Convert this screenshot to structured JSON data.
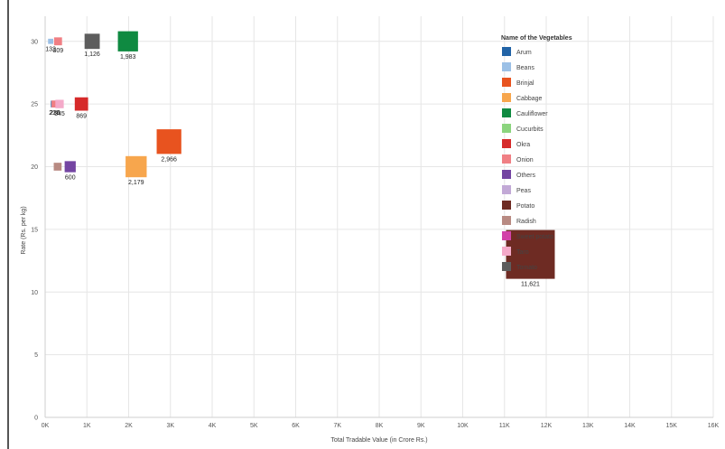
{
  "chart_data": {
    "type": "scatter",
    "xlabel": "Total Tradable Value (in Crore Rs.)",
    "ylabel": "Rate (Rs. per kg)",
    "xlim": [
      0,
      16
    ],
    "ylim": [
      0,
      32
    ],
    "x_unit": "K",
    "x_ticks": [
      "0K",
      "1K",
      "2K",
      "3K",
      "4K",
      "5K",
      "6K",
      "7K",
      "8K",
      "9K",
      "10K",
      "11K",
      "12K",
      "13K",
      "14K",
      "15K",
      "16K"
    ],
    "y_ticks": [
      "0",
      "5",
      "10",
      "15",
      "20",
      "25",
      "30"
    ],
    "grid": true,
    "legend_title": "Name of the Vegetables",
    "legend_position": "top-right",
    "legend": [
      {
        "name": "Arum",
        "color": "#2163a6"
      },
      {
        "name": "Beans",
        "color": "#9bc0e6"
      },
      {
        "name": "Brinjal",
        "color": "#e8531f"
      },
      {
        "name": "Cabbage",
        "color": "#f7a64d"
      },
      {
        "name": "Cauliflower",
        "color": "#0f8a41"
      },
      {
        "name": "Cucurbits",
        "color": "#8bd47e"
      },
      {
        "name": "Okra",
        "color": "#d62a2a"
      },
      {
        "name": "Onion",
        "color": "#f07f84"
      },
      {
        "name": "Others",
        "color": "#7445a2"
      },
      {
        "name": "Peas",
        "color": "#c2a9d6"
      },
      {
        "name": "Potato",
        "color": "#6e2b23"
      },
      {
        "name": "Radish",
        "color": "#b88a82"
      },
      {
        "name": "Sweet potato",
        "color": "#d243a8"
      },
      {
        "name": "Taro",
        "color": "#f4aac9"
      },
      {
        "name": "Tomato",
        "color": "#5d5d5d"
      }
    ],
    "points": [
      {
        "name": "Beans",
        "x": 0.132,
        "y": 30,
        "value": 132,
        "label": "132",
        "color": "#9bc0e6"
      },
      {
        "name": "Onion",
        "x": 0.309,
        "y": 30,
        "value": 309,
        "label": "309",
        "color": "#f07f84"
      },
      {
        "name": "Tomato",
        "x": 1.126,
        "y": 30,
        "value": 1126,
        "label": "1,126",
        "color": "#5d5d5d"
      },
      {
        "name": "Cauliflower",
        "x": 1.983,
        "y": 30,
        "value": 1983,
        "label": "1,983",
        "color": "#0f8a41"
      },
      {
        "name": "Arum",
        "x": 0.217,
        "y": 25,
        "value": 217,
        "label": "217",
        "color": "#2163a6"
      },
      {
        "name": "Onion",
        "x": 0.236,
        "y": 25,
        "value": 236,
        "label": "236",
        "color": "#f07f84"
      },
      {
        "name": "Taro",
        "x": 0.345,
        "y": 25,
        "value": 345,
        "label": "345",
        "color": "#f4aac9"
      },
      {
        "name": "Okra",
        "x": 0.869,
        "y": 25,
        "value": 869,
        "label": "869",
        "color": "#d62a2a"
      },
      {
        "name": "Radish",
        "x": 0.3,
        "y": 20,
        "value": 300,
        "label": "",
        "color": "#b88a82"
      },
      {
        "name": "Others",
        "x": 0.6,
        "y": 20,
        "value": 600,
        "label": "600",
        "color": "#7445a2"
      },
      {
        "name": "Cabbage",
        "x": 2.179,
        "y": 20,
        "value": 2179,
        "label": "2,179",
        "color": "#f7a64d"
      },
      {
        "name": "Brinjal",
        "x": 2.966,
        "y": 22,
        "value": 2966,
        "label": "2,966",
        "color": "#e8531f"
      },
      {
        "name": "Potato",
        "x": 11.621,
        "y": 13,
        "value": 11621,
        "label": "11,621",
        "color": "#6e2b23"
      }
    ]
  }
}
